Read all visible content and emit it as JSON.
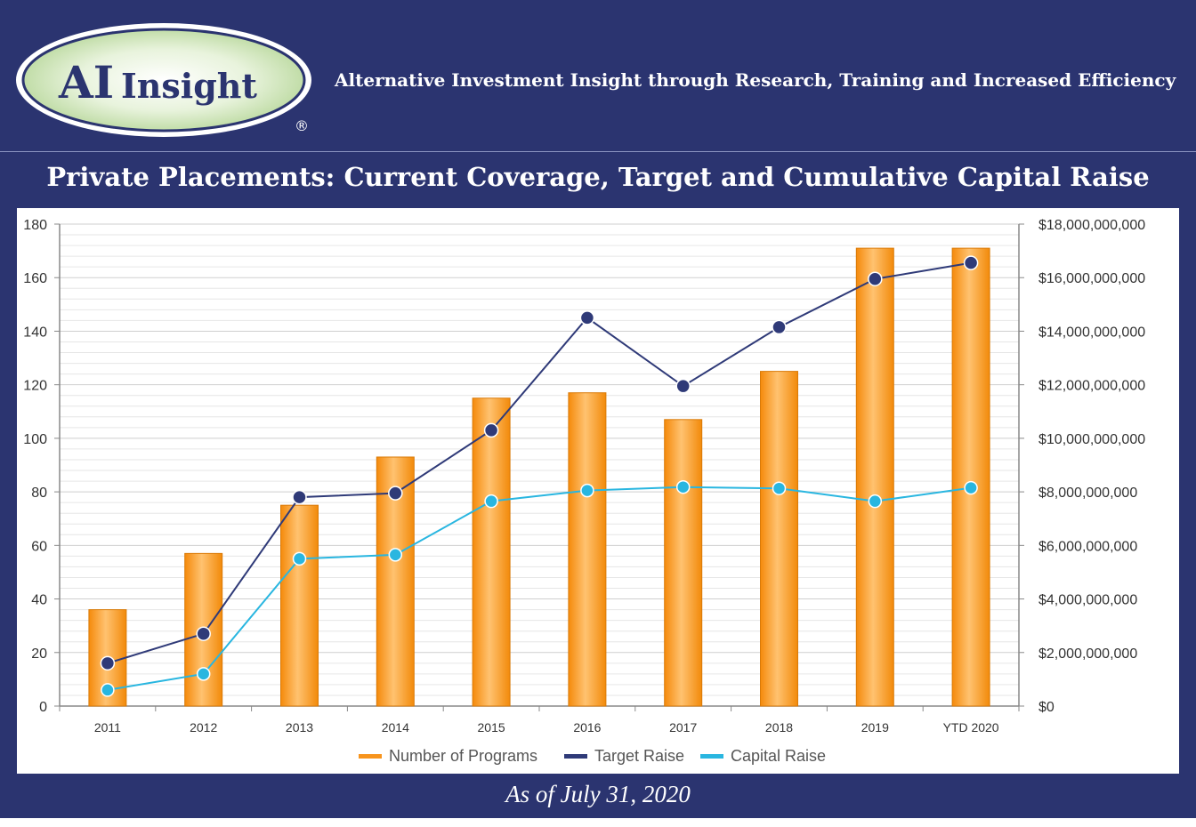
{
  "header": {
    "logo_text_ai": "AI",
    "logo_text_insight": "Insight",
    "logo_registered": "®",
    "tagline": "Alternative Investment Insight through Research, Training and Increased Efficiency"
  },
  "title": "Private Placements: Current Coverage, Target and Cumulative Capital Raise",
  "footer_note": "As of July 31, 2020",
  "colors": {
    "background": "#2b3470",
    "bars": "#f7941d",
    "target_raise": "#2f3a78",
    "capital_raise": "#29b6e0"
  },
  "chart_data": {
    "type": "bar",
    "categories": [
      "2011",
      "2012",
      "2013",
      "2014",
      "2015",
      "2016",
      "2017",
      "2018",
      "2019",
      "YTD 2020"
    ],
    "series": [
      {
        "name": "Number of Programs",
        "type": "bar",
        "axis": "left",
        "values": [
          36,
          57,
          75,
          93,
          115,
          117,
          107,
          125,
          171,
          171
        ]
      },
      {
        "name": "Target Raise",
        "type": "line",
        "axis": "right",
        "values": [
          1600000000,
          2700000000,
          7800000000,
          7950000000,
          10300000000,
          14500000000,
          11950000000,
          14150000000,
          15950000000,
          16550000000
        ]
      },
      {
        "name": "Capital Raise",
        "type": "line",
        "axis": "right",
        "values": [
          600000000,
          1200000000,
          5500000000,
          5650000000,
          7650000000,
          8050000000,
          8180000000,
          8130000000,
          7650000000,
          8150000000
        ]
      }
    ],
    "y_left": {
      "min": 0,
      "max": 180,
      "ticks": [
        "0",
        "20",
        "40",
        "60",
        "80",
        "100",
        "120",
        "140",
        "160",
        "180"
      ]
    },
    "y_right": {
      "min": 0,
      "max": 18000000000,
      "ticks": [
        "$0",
        "$2,000,000,000",
        "$4,000,000,000",
        "$6,000,000,000",
        "$8,000,000,000",
        "$10,000,000,000",
        "$12,000,000,000",
        "$14,000,000,000",
        "$16,000,000,000",
        "$18,000,000,000"
      ]
    },
    "grid": true,
    "legend_position": "bottom"
  }
}
